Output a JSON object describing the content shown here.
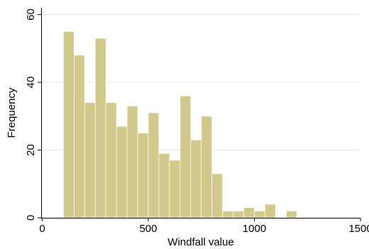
{
  "chart_data": {
    "type": "bar",
    "subtype": "histogram",
    "xlabel": "Windfall value",
    "ylabel": "Frequency",
    "xlim": [
      -5,
      1500
    ],
    "ylim": [
      0,
      62
    ],
    "x_ticks": [
      0,
      500,
      1000,
      1500
    ],
    "y_ticks": [
      0,
      20,
      40,
      60
    ],
    "grid": true,
    "bar_color": "#d2c98c",
    "bin_width": 50,
    "bins": [
      {
        "start": 100,
        "end": 150,
        "value": 55
      },
      {
        "start": 150,
        "end": 200,
        "value": 48
      },
      {
        "start": 200,
        "end": 250,
        "value": 34
      },
      {
        "start": 250,
        "end": 300,
        "value": 53
      },
      {
        "start": 300,
        "end": 350,
        "value": 34
      },
      {
        "start": 350,
        "end": 400,
        "value": 27
      },
      {
        "start": 400,
        "end": 450,
        "value": 33
      },
      {
        "start": 450,
        "end": 500,
        "value": 25
      },
      {
        "start": 500,
        "end": 550,
        "value": 31
      },
      {
        "start": 550,
        "end": 600,
        "value": 19
      },
      {
        "start": 600,
        "end": 650,
        "value": 17
      },
      {
        "start": 650,
        "end": 700,
        "value": 36
      },
      {
        "start": 700,
        "end": 750,
        "value": 23
      },
      {
        "start": 750,
        "end": 800,
        "value": 30
      },
      {
        "start": 800,
        "end": 850,
        "value": 13
      },
      {
        "start": 850,
        "end": 900,
        "value": 2
      },
      {
        "start": 900,
        "end": 950,
        "value": 2
      },
      {
        "start": 950,
        "end": 1000,
        "value": 3
      },
      {
        "start": 1000,
        "end": 1050,
        "value": 2
      },
      {
        "start": 1050,
        "end": 1100,
        "value": 4
      },
      {
        "start": 1150,
        "end": 1200,
        "value": 2
      }
    ]
  }
}
